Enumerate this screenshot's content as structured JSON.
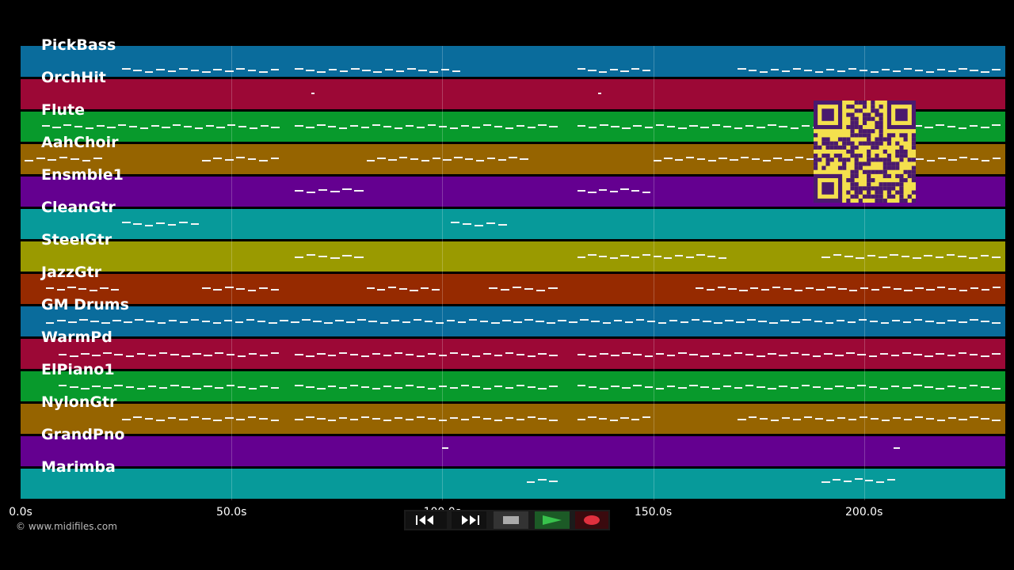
{
  "tracks": [
    {
      "name": "PickBass",
      "color": "#0a6c9c"
    },
    {
      "name": "OrchHit",
      "color": "#9c0836"
    },
    {
      "name": "Flute",
      "color": "#089a2c"
    },
    {
      "name": "AahChoir",
      "color": "#966400"
    },
    {
      "name": "Ensmble1",
      "color": "#640090"
    },
    {
      "name": "CleanGtr",
      "color": "#079a9a"
    },
    {
      "name": "SteelGtr",
      "color": "#9a9a00"
    },
    {
      "name": "JazzGtr",
      "color": "#962a00"
    },
    {
      "name": "GM Drums",
      "color": "#0a6c9c"
    },
    {
      "name": "WarmPd",
      "color": "#9c0836"
    },
    {
      "name": "ElPiano1",
      "color": "#089a2c"
    },
    {
      "name": "NylonGtr",
      "color": "#966400"
    },
    {
      "name": "GrandPno",
      "color": "#640090"
    },
    {
      "name": "Marimba",
      "color": "#079a9a"
    }
  ],
  "timeline": {
    "ticks": [
      "0.0s",
      "50.0s",
      "100.0s",
      "150.0s",
      "200.0s"
    ],
    "tick_values": [
      0,
      50,
      100,
      150,
      200
    ],
    "max_seconds": 233.5
  },
  "copyright": "© www.midifiles.com",
  "transport": {
    "rewind_icon": "rewind-icon",
    "fastforward_icon": "fast-forward-icon",
    "stop_icon": "stop-icon",
    "play_icon": "play-icon",
    "record_icon": "record-icon"
  },
  "qr": {
    "icon": "qr-code"
  }
}
